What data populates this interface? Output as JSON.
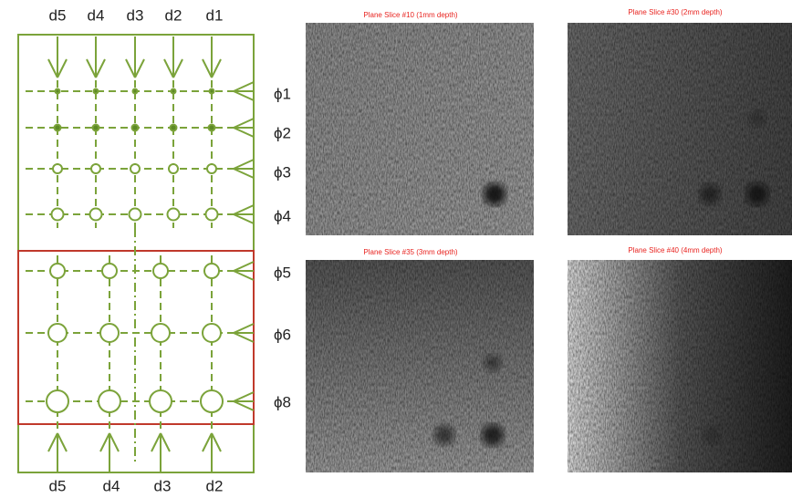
{
  "top_labels": [
    "d5",
    "d4",
    "d3",
    "d2",
    "d1"
  ],
  "side_labels": [
    "ϕ1",
    "ϕ2",
    "ϕ3",
    "ϕ4",
    "ϕ5",
    "ϕ6",
    "ϕ8"
  ],
  "bottom_labels": [
    "d5",
    "d4",
    "d3",
    "d2"
  ],
  "panels": [
    {
      "title": "Plane Slice #10 (1mm depth)"
    },
    {
      "title": "Plane Slice #30 (2mm depth)"
    },
    {
      "title": "Plane Slice #35 (3mm depth)"
    },
    {
      "title": "Plane Slice #40 (4mm depth)"
    }
  ]
}
